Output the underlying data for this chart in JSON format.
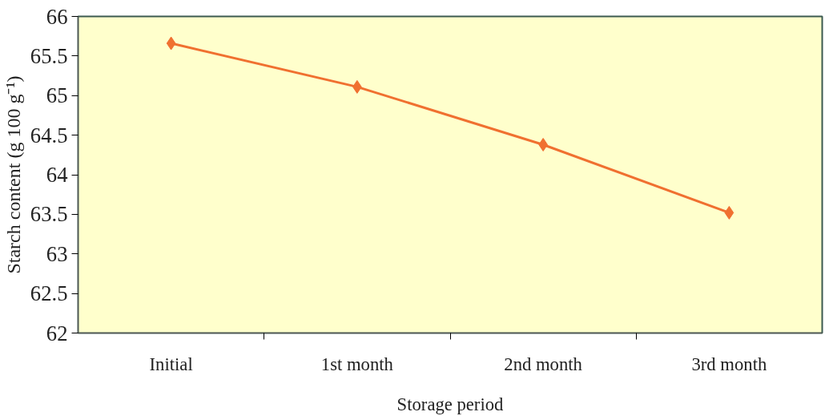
{
  "chart_data": {
    "type": "line",
    "xlabel": "Storage period",
    "ylabel": "Starch content (g 100 g⁻¹)",
    "categories": [
      "Initial",
      "1st month",
      "2nd month",
      "3rd month"
    ],
    "values": [
      65.66,
      65.11,
      64.38,
      63.52
    ],
    "color": "#f07030",
    "marker": "diamond",
    "line_style": "solid",
    "grid": false,
    "ylim": [
      62,
      66
    ],
    "yticks": [
      62,
      62.5,
      63,
      63.5,
      64,
      64.5,
      65,
      65.5,
      66
    ]
  }
}
